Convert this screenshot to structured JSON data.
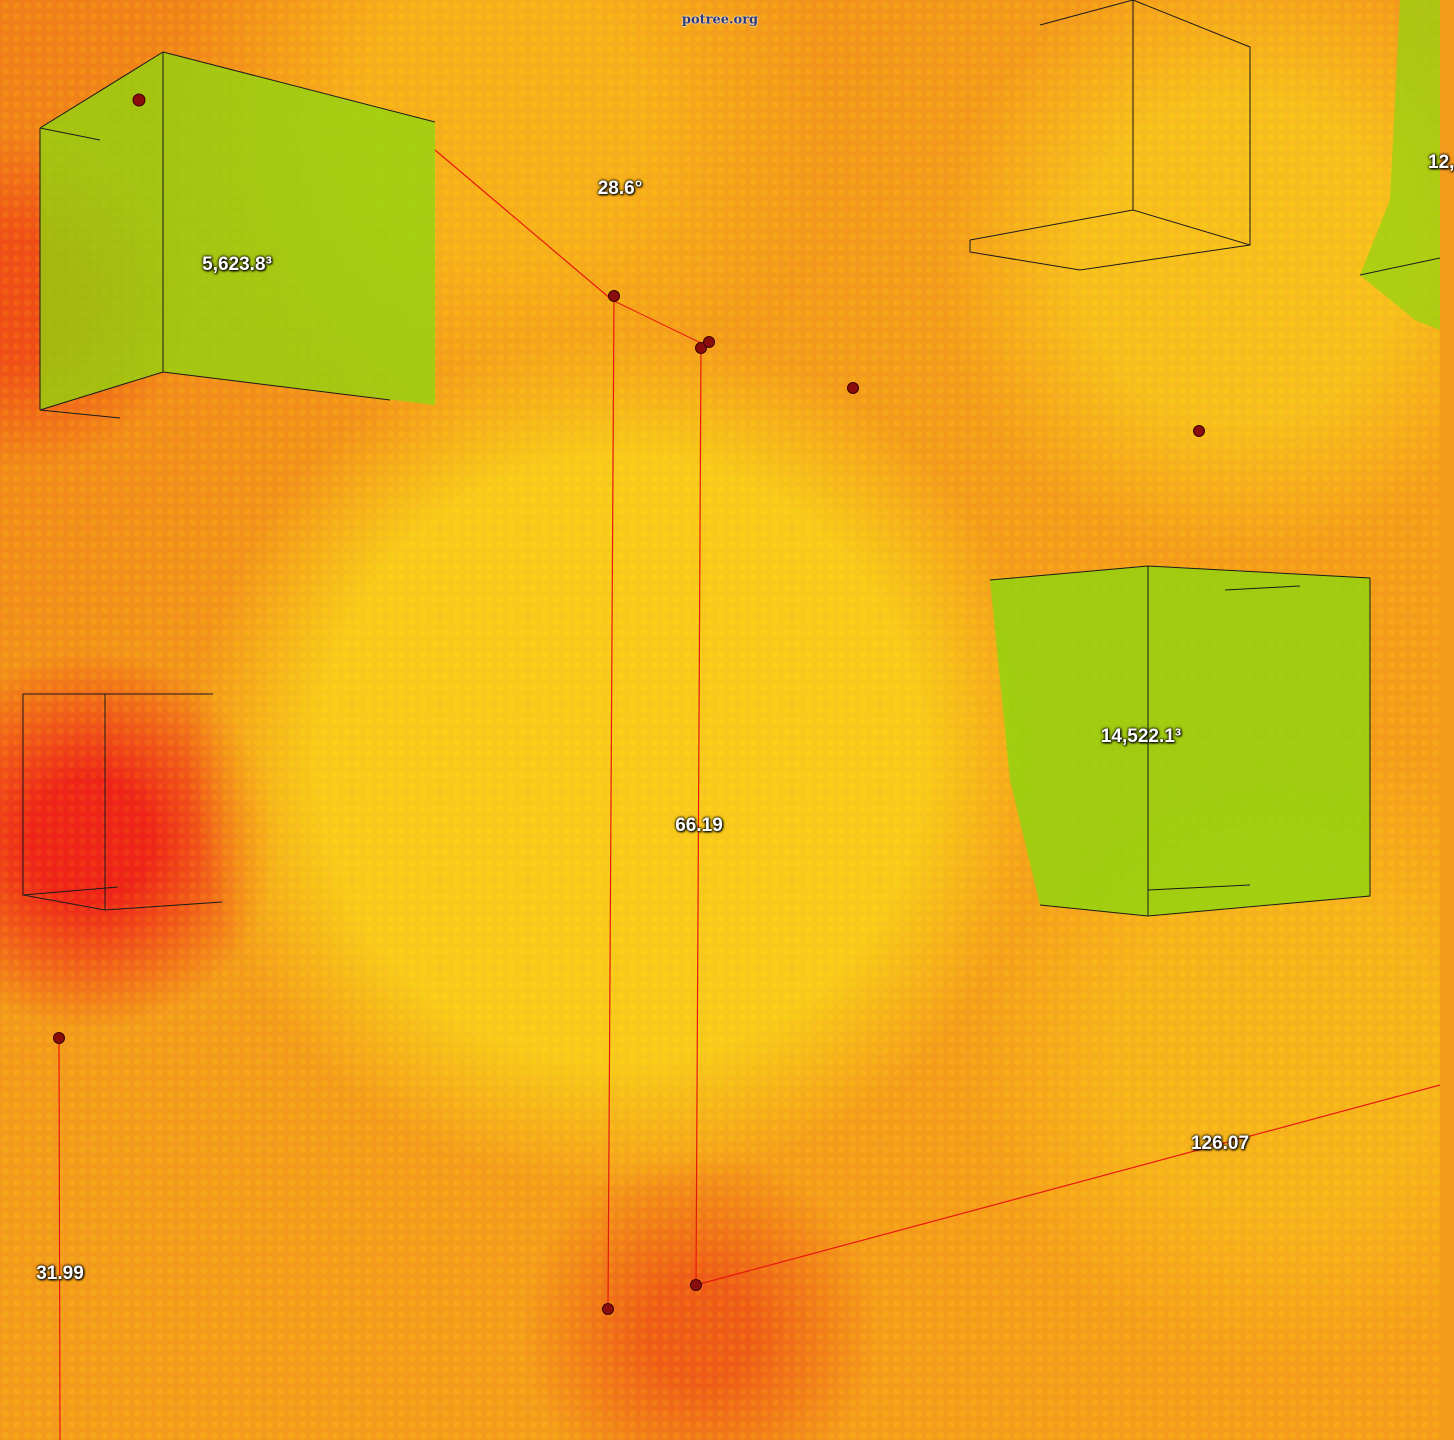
{
  "watermark": "potree.org",
  "colors": {
    "measure_line": "#e8170e",
    "marker": "#8a0d0d",
    "box_fill": "#8fd60f",
    "box_edge": "#1a1a1a"
  },
  "measurements": {
    "angle": "28.6°",
    "volume_top_left": "5,623.8³",
    "volume_right": "14,522.1³",
    "volume_top_right_partial": "12,",
    "height_center": "66.19",
    "height_left": "31.99",
    "distance_bottom_right": "126.07"
  }
}
